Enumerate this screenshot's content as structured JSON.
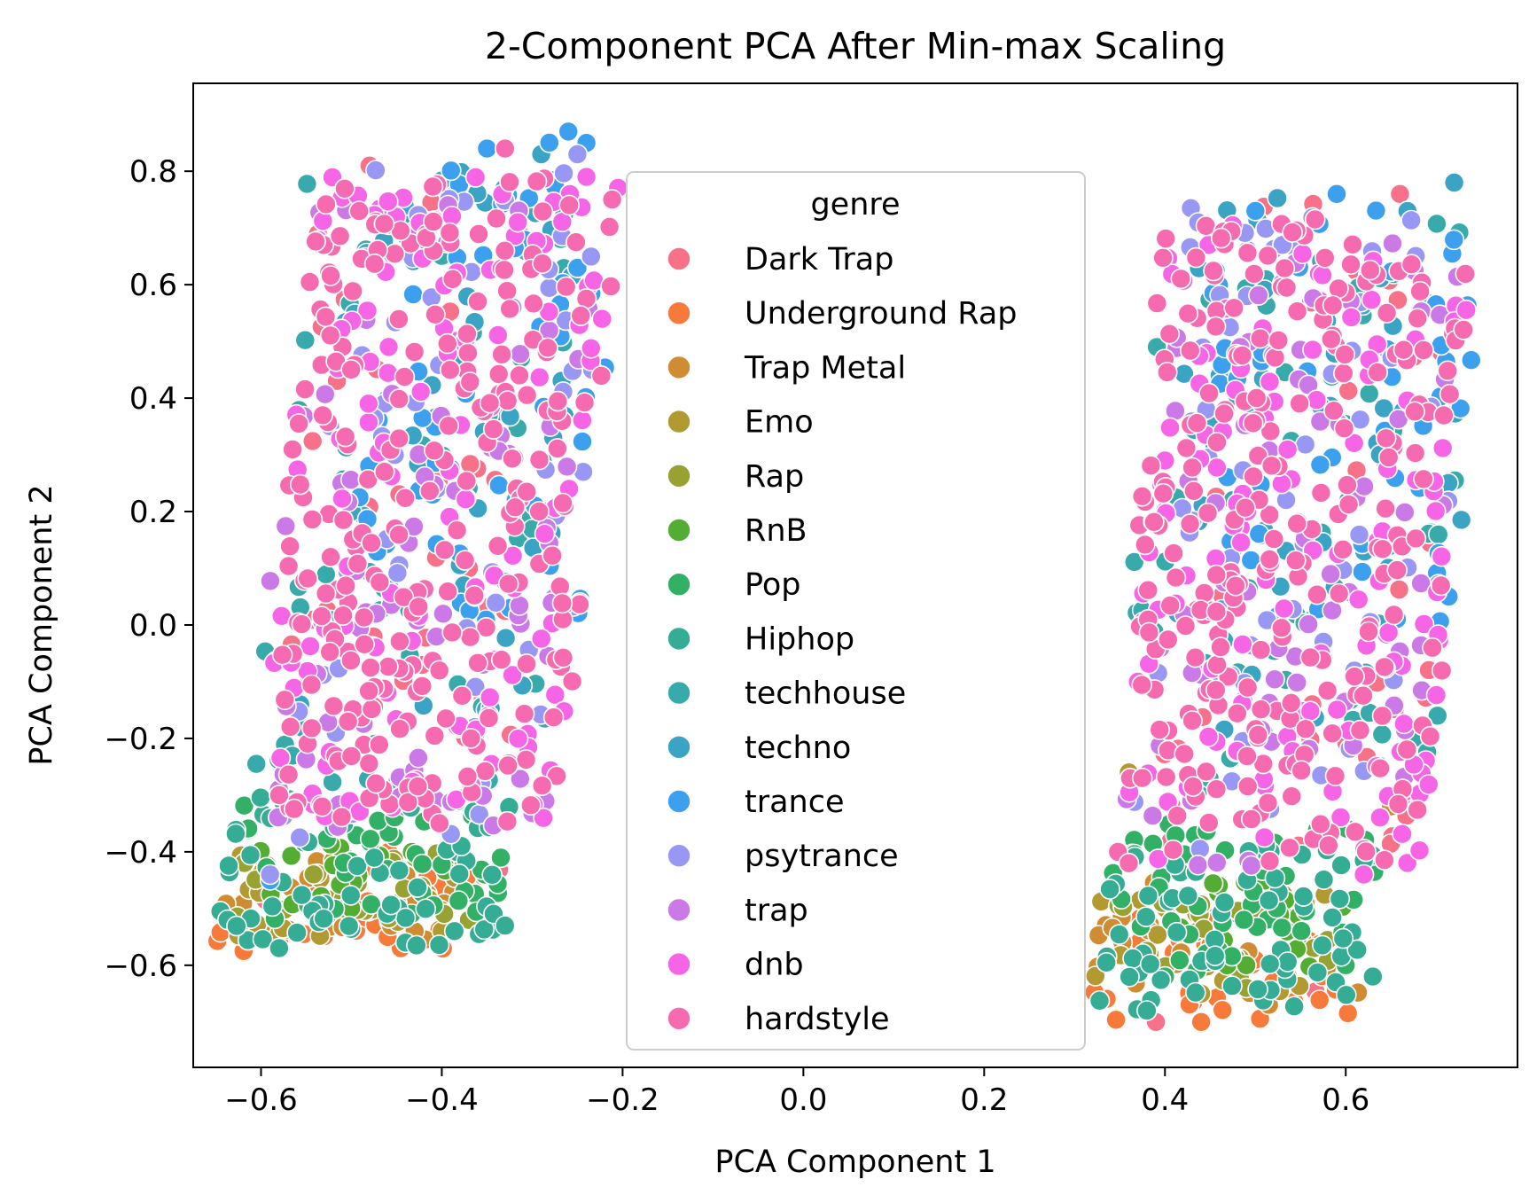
{
  "chart_data": {
    "type": "scatter",
    "title": "2-Component PCA After Min-max Scaling",
    "xlabel": "PCA Component 1",
    "ylabel": "PCA Component 2",
    "xlim": [
      -0.675,
      0.79
    ],
    "ylim": [
      -0.78,
      0.955
    ],
    "x_ticks": [
      -0.6,
      -0.4,
      -0.2,
      0.0,
      0.2,
      0.4,
      0.6
    ],
    "x_tick_labels": [
      "−0.6",
      "−0.4",
      "−0.2",
      "0.0",
      "0.2",
      "0.4",
      "0.6"
    ],
    "y_ticks": [
      -0.6,
      -0.4,
      -0.2,
      0.0,
      0.2,
      0.4,
      0.6,
      0.8
    ],
    "y_tick_labels": [
      "−0.6",
      "−0.4",
      "−0.2",
      "0.0",
      "0.2",
      "0.4",
      "0.6",
      "0.8"
    ],
    "grid": false,
    "legend": {
      "title": "genre",
      "placement": "center"
    },
    "series": [
      {
        "name": "Dark Trap",
        "color": "#f77189",
        "clusters": [
          {
            "x_range": [
              -0.6,
              -0.3
            ],
            "y_range": [
              -0.55,
              0.8
            ]
          },
          {
            "x_range": [
              0.36,
              0.7
            ],
            "y_range": [
              -0.68,
              0.76
            ]
          }
        ],
        "points": [
          [
            -0.48,
            0.81
          ],
          [
            0.39,
            -0.7
          ],
          [
            0.66,
            0.76
          ],
          [
            -0.37,
            0.1
          ]
        ]
      },
      {
        "name": "Underground Rap",
        "color": "#f77a3b",
        "clusters": [
          {
            "x_range": [
              -0.61,
              -0.33
            ],
            "y_range": [
              -0.58,
              -0.4
            ]
          },
          {
            "x_range": [
              0.35,
              0.64
            ],
            "y_range": [
              -0.7,
              -0.5
            ]
          }
        ],
        "points": [
          [
            -0.46,
            -0.55
          ],
          [
            -0.58,
            -0.56
          ],
          [
            0.44,
            -0.7
          ],
          [
            0.57,
            -0.61
          ],
          [
            0.52,
            -0.63
          ]
        ]
      },
      {
        "name": "Trap Metal",
        "color": "#d08c32",
        "clusters": [
          {
            "x_range": [
              -0.61,
              -0.35
            ],
            "y_range": [
              -0.56,
              -0.4
            ]
          },
          {
            "x_range": [
              0.35,
              0.65
            ],
            "y_range": [
              -0.67,
              -0.45
            ]
          }
        ],
        "points": [
          [
            -0.43,
            -0.54
          ],
          [
            0.47,
            -0.62
          ],
          [
            0.65,
            -0.32
          ]
        ]
      },
      {
        "name": "Emo",
        "color": "#b29a33",
        "clusters": [
          {
            "x_range": [
              -0.6,
              -0.35
            ],
            "y_range": [
              -0.55,
              -0.4
            ]
          },
          {
            "x_range": [
              0.35,
              0.62
            ],
            "y_range": [
              -0.66,
              -0.45
            ]
          }
        ],
        "points": [
          [
            -0.4,
            -0.54
          ],
          [
            0.44,
            -0.65
          ],
          [
            0.36,
            -0.26
          ]
        ]
      },
      {
        "name": "Rap",
        "color": "#97a233",
        "clusters": [
          {
            "x_range": [
              -0.6,
              -0.35
            ],
            "y_range": [
              -0.53,
              -0.4
            ]
          },
          {
            "x_range": [
              0.35,
              0.62
            ],
            "y_range": [
              -0.64,
              -0.45
            ]
          }
        ],
        "points": [
          [
            -0.37,
            -0.52
          ],
          [
            0.49,
            -0.64
          ]
        ]
      },
      {
        "name": "RnB",
        "color": "#52ad32",
        "clusters": [
          {
            "x_range": [
              -0.58,
              -0.35
            ],
            "y_range": [
              -0.5,
              -0.38
            ]
          },
          {
            "x_range": [
              0.37,
              0.62
            ],
            "y_range": [
              -0.62,
              -0.45
            ]
          }
        ],
        "points": [
          [
            0.49,
            -0.6
          ]
        ]
      },
      {
        "name": "Pop",
        "color": "#32b166",
        "clusters": [
          {
            "x_range": [
              -0.6,
              -0.3
            ],
            "y_range": [
              -0.52,
              -0.3
            ]
          },
          {
            "x_range": [
              0.36,
              0.66
            ],
            "y_range": [
              -0.62,
              -0.35
            ]
          }
        ],
        "points": [
          [
            0.4,
            -0.62
          ],
          [
            0.6,
            -0.6
          ]
        ]
      },
      {
        "name": "Hiphop",
        "color": "#35ac94",
        "clusters": [
          {
            "x_range": [
              -0.61,
              -0.3
            ],
            "y_range": [
              -0.57,
              -0.3
            ]
          },
          {
            "x_range": [
              0.35,
              0.65
            ],
            "y_range": [
              -0.68,
              -0.38
            ]
          }
        ],
        "points": [
          [
            -0.33,
            -0.53
          ],
          [
            -0.58,
            -0.57
          ],
          [
            0.38,
            -0.68
          ],
          [
            0.63,
            -0.62
          ]
        ]
      },
      {
        "name": "techhouse",
        "color": "#38aaac",
        "clusters": [
          {
            "x_range": [
              -0.59,
              -0.28
            ],
            "y_range": [
              -0.3,
              0.78
            ]
          },
          {
            "x_range": [
              0.36,
              0.71
            ],
            "y_range": [
              -0.3,
              0.72
            ]
          }
        ],
        "points": [
          [
            -0.51,
            0.76
          ],
          [
            0.46,
            0.69
          ]
        ]
      },
      {
        "name": "techno",
        "color": "#3ba3c4",
        "clusters": [
          {
            "x_range": [
              -0.55,
              -0.27
            ],
            "y_range": [
              -0.2,
              0.82
            ]
          },
          {
            "x_range": [
              0.4,
              0.72
            ],
            "y_range": [
              -0.2,
              0.77
            ]
          }
        ],
        "points": [
          [
            -0.29,
            0.83
          ],
          [
            0.72,
            0.78
          ]
        ]
      },
      {
        "name": "trance",
        "color": "#3ca0ef",
        "clusters": [
          {
            "x_range": [
              -0.5,
              -0.24
            ],
            "y_range": [
              0.0,
              0.86
            ]
          },
          {
            "x_range": [
              0.42,
              0.72
            ],
            "y_range": [
              0.0,
              0.76
            ]
          }
        ],
        "points": [
          [
            -0.26,
            0.87
          ],
          [
            -0.24,
            0.85
          ],
          [
            -0.35,
            0.84
          ],
          [
            0.5,
            0.73
          ],
          [
            0.59,
            0.76
          ],
          [
            -0.59,
            -0.45
          ]
        ]
      },
      {
        "name": "psytrance",
        "color": "#9897f4",
        "clusters": [
          {
            "x_range": [
              -0.55,
              -0.25
            ],
            "y_range": [
              -0.38,
              0.82
            ]
          },
          {
            "x_range": [
              0.38,
              0.71
            ],
            "y_range": [
              -0.4,
              0.74
            ]
          }
        ],
        "points": [
          [
            -0.25,
            0.83
          ],
          [
            -0.59,
            -0.44
          ],
          [
            0.53,
            0.67
          ]
        ]
      },
      {
        "name": "trap",
        "color": "#cc79e8",
        "clusters": [
          {
            "x_range": [
              -0.59,
              -0.26
            ],
            "y_range": [
              -0.36,
              0.75
            ]
          },
          {
            "x_range": [
              0.37,
              0.7
            ],
            "y_range": [
              -0.43,
              0.7
            ]
          }
        ],
        "points": [
          [
            -0.28,
            0.35
          ],
          [
            0.4,
            0.2
          ]
        ]
      },
      {
        "name": "dnb",
        "color": "#f565e6",
        "clusters": [
          {
            "x_range": [
              -0.58,
              -0.24
            ],
            "y_range": [
              -0.35,
              0.8
            ]
          },
          {
            "x_range": [
              0.37,
              0.71
            ],
            "y_range": [
              -0.43,
              0.72
            ]
          }
        ],
        "points": [
          [
            -0.24,
            0.79
          ],
          [
            0.4,
            0.29
          ],
          [
            0.37,
            -0.1
          ],
          [
            0.62,
            -0.44
          ]
        ]
      },
      {
        "name": "hardstyle",
        "color": "#f66bb0",
        "clusters": [
          {
            "x_range": [
              -0.58,
              -0.24
            ],
            "y_range": [
              -0.35,
              0.8
            ]
          },
          {
            "x_range": [
              0.36,
              0.71
            ],
            "y_range": [
              -0.42,
              0.72
            ]
          }
        ],
        "points": [
          [
            -0.58,
            -0.3
          ],
          [
            -0.33,
            0.84
          ],
          [
            0.36,
            -0.42
          ]
        ]
      }
    ]
  }
}
